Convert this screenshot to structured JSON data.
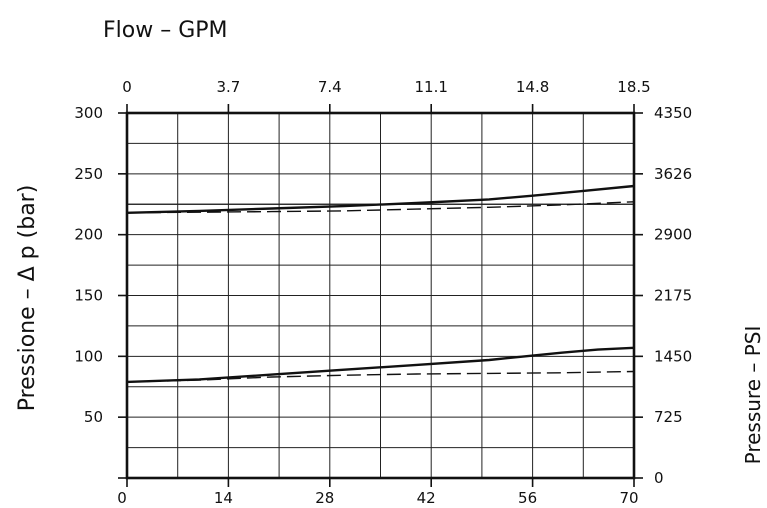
{
  "chart_data": {
    "type": "line",
    "title": "",
    "top_axis_label": "Flow  –  GPM",
    "left_axis_label": "Pressione  –  Δ p  (bar)",
    "right_axis_label": "Pressure  –  PSI",
    "xlabel": "",
    "xlim": [
      0,
      70
    ],
    "ylim": [
      0,
      300
    ],
    "grid": true,
    "x_ticks": [
      "0",
      "14",
      "28",
      "42",
      "56",
      "70"
    ],
    "x_ticks_top": [
      "0",
      "3.7",
      "7.4",
      "11.1",
      "14.8",
      "18.5"
    ],
    "y_ticks_left": [
      "300",
      "250",
      "200",
      "150",
      "100",
      "50",
      ""
    ],
    "y_ticks_right": [
      "4350",
      "3626",
      "2900",
      "2175",
      "1450",
      "725",
      "0"
    ],
    "reference_line_y": 225,
    "series": [
      {
        "style": "solid",
        "x": [
          0,
          10,
          20,
          30,
          40,
          50,
          56,
          63,
          70
        ],
        "y": [
          218,
          219.5,
          221.5,
          223.5,
          226,
          229,
          232,
          236,
          240
        ]
      },
      {
        "style": "dashed",
        "x": [
          0,
          10,
          20,
          30,
          40,
          50,
          60,
          70
        ],
        "y": [
          218,
          218.5,
          219,
          219.5,
          221,
          222.5,
          224.5,
          227
        ]
      },
      {
        "style": "solid",
        "x": [
          0,
          10,
          20,
          30,
          40,
          50,
          55,
          60,
          65,
          70
        ],
        "y": [
          79,
          81,
          85,
          89,
          93,
          97,
          100,
          103,
          105.5,
          107
        ]
      },
      {
        "style": "dashed",
        "x": [
          0,
          10,
          20,
          30,
          40,
          50,
          60,
          70
        ],
        "y": [
          79,
          80.5,
          83,
          84.5,
          85.5,
          86,
          86.5,
          87.5
        ]
      }
    ]
  }
}
